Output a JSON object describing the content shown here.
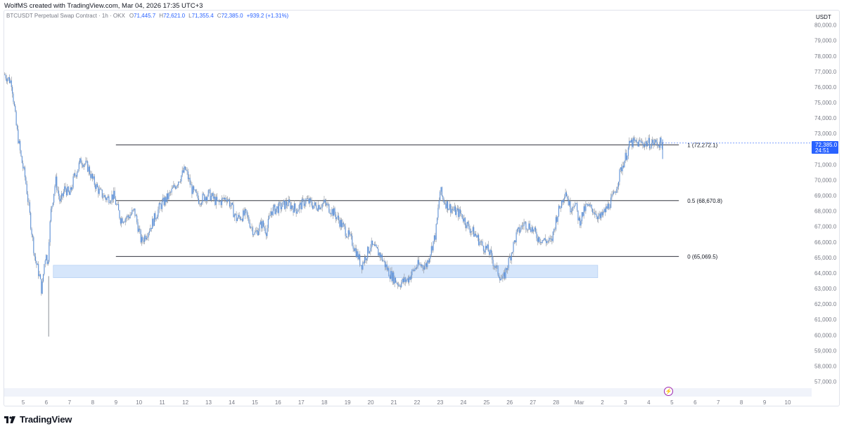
{
  "credit": "WolfMS created with TradingView.com, Mar 04, 2026 17:35 UTC+3",
  "legend": {
    "symbol": "BTCUSDT Perpetual Swap Contract · 1h · OKX",
    "open_key": "O",
    "open": "71,445.7",
    "high_key": "H",
    "high": "72,621.0",
    "low_key": "L",
    "low": "71,355.4",
    "close_key": "C",
    "close": "72,385.0",
    "change": "+939.2 (+1.31%)"
  },
  "currency": "USDT",
  "last_price": {
    "value": "72,385.0",
    "countdown": "24:51"
  },
  "logo_text": "TradingView",
  "colors": {
    "candle": "#5b8fd6",
    "wick": "#8a8f98",
    "zone_fill": "#d6e6fb",
    "zone_stroke": "#a9c7f2",
    "price_tag": "#2962ff",
    "fib_line": "#131722"
  },
  "chart_data": {
    "type": "line",
    "title": "",
    "xlabel": "",
    "ylabel": "",
    "y_ticks": [
      "80,000.0",
      "79,000.0",
      "78,000.0",
      "77,000.0",
      "76,000.0",
      "75,000.0",
      "74,000.0",
      "73,000.0",
      "72,000.0",
      "71,000.0",
      "70,000.0",
      "69,000.0",
      "68,000.0",
      "67,000.0",
      "66,000.0",
      "65,000.0",
      "64,000.0",
      "63,000.0",
      "62,000.0",
      "61,000.0",
      "60,000.0",
      "59,000.0",
      "58,000.0",
      "57,000.0"
    ],
    "ylim": [
      56300,
      80300
    ],
    "x_ticks": [
      "5",
      "6",
      "7",
      "8",
      "9",
      "10",
      "11",
      "12",
      "13",
      "14",
      "15",
      "16",
      "17",
      "18",
      "19",
      "20",
      "21",
      "22",
      "23",
      "24",
      "25",
      "26",
      "27",
      "28",
      "Mar",
      "2",
      "3",
      "4",
      "5",
      "6",
      "7",
      "8",
      "9",
      "10"
    ],
    "x_tick_day_index": [
      0,
      1,
      2,
      3,
      4,
      5,
      6,
      7,
      8,
      9,
      10,
      11,
      12,
      13,
      14,
      15,
      16,
      17,
      18,
      19,
      20,
      21,
      22,
      23,
      24,
      25,
      26,
      27,
      28,
      29,
      30,
      31,
      32,
      33
    ],
    "price_path": {
      "day_index": [
        -0.8,
        -0.5,
        -0.3,
        -0.1,
        0.1,
        0.3,
        0.5,
        0.7,
        0.8,
        0.9,
        1.0,
        1.05,
        1.1,
        1.2,
        1.4,
        1.6,
        1.8,
        2.0,
        2.2,
        2.5,
        2.8,
        3.0,
        3.3,
        3.6,
        3.9,
        4.2,
        4.5,
        4.8,
        5.1,
        5.5,
        5.9,
        6.3,
        6.7,
        7.0,
        7.3,
        7.6,
        8.0,
        8.4,
        8.8,
        9.2,
        9.6,
        10.0,
        10.3,
        10.5,
        10.7,
        11.0,
        11.4,
        11.8,
        12.2,
        12.6,
        13.0,
        13.4,
        13.8,
        14.2,
        14.6,
        15.0,
        15.4,
        15.8,
        16.2,
        16.6,
        17.0,
        17.4,
        17.8,
        18.0,
        18.1,
        18.3,
        18.6,
        18.9,
        19.2,
        19.5,
        19.8,
        20.1,
        20.4,
        20.7,
        21.0,
        21.3,
        21.6,
        21.9,
        22.2,
        22.5,
        22.8,
        23.0,
        23.2,
        23.4,
        23.6,
        23.8,
        24.0,
        24.3,
        24.6,
        24.9,
        25.2,
        25.5,
        25.8,
        26.0,
        26.2,
        26.5,
        26.8,
        27.1,
        27.3,
        27.5,
        27.6
      ],
      "close": [
        76800,
        76300,
        73500,
        71500,
        70000,
        67500,
        65000,
        63800,
        62800,
        64500,
        65500,
        64000,
        66000,
        68000,
        70000,
        68500,
        69500,
        69000,
        70200,
        71300,
        70800,
        70000,
        69200,
        68800,
        69000,
        67500,
        67600,
        68000,
        66000,
        67000,
        68300,
        69000,
        70000,
        70700,
        69300,
        68700,
        69100,
        68500,
        68900,
        67500,
        67800,
        66500,
        67200,
        66700,
        68000,
        68200,
        68500,
        68100,
        68700,
        68300,
        68500,
        67900,
        67000,
        66000,
        64500,
        65800,
        65200,
        64000,
        63300,
        63600,
        64500,
        64500,
        66500,
        69400,
        68800,
        68400,
        68000,
        67800,
        67000,
        66500,
        65800,
        65400,
        64300,
        63500,
        65000,
        66500,
        67200,
        67000,
        66300,
        66100,
        66000,
        67500,
        68400,
        69400,
        68200,
        68600,
        67300,
        68300,
        68100,
        67500,
        68200,
        69000,
        70700,
        71500,
        72385,
        72385,
        72385,
        72385,
        72385,
        72385,
        72385
      ]
    },
    "fib_levels": [
      {
        "label": "1 (72,272.1)",
        "value": 72272.1
      },
      {
        "label": "0.5 (68,670.8)",
        "value": 68670.8
      },
      {
        "label": "0 (65,069.5)",
        "value": 65069.5
      }
    ],
    "fib_x_range_day": [
      4.0,
      28.3
    ],
    "support_zone": {
      "from_day": 1.3,
      "to_day": 24.8,
      "low": 63700,
      "high": 64500
    },
    "last_price": 72385.0,
    "grid": false,
    "legend_placement": "top-left"
  }
}
